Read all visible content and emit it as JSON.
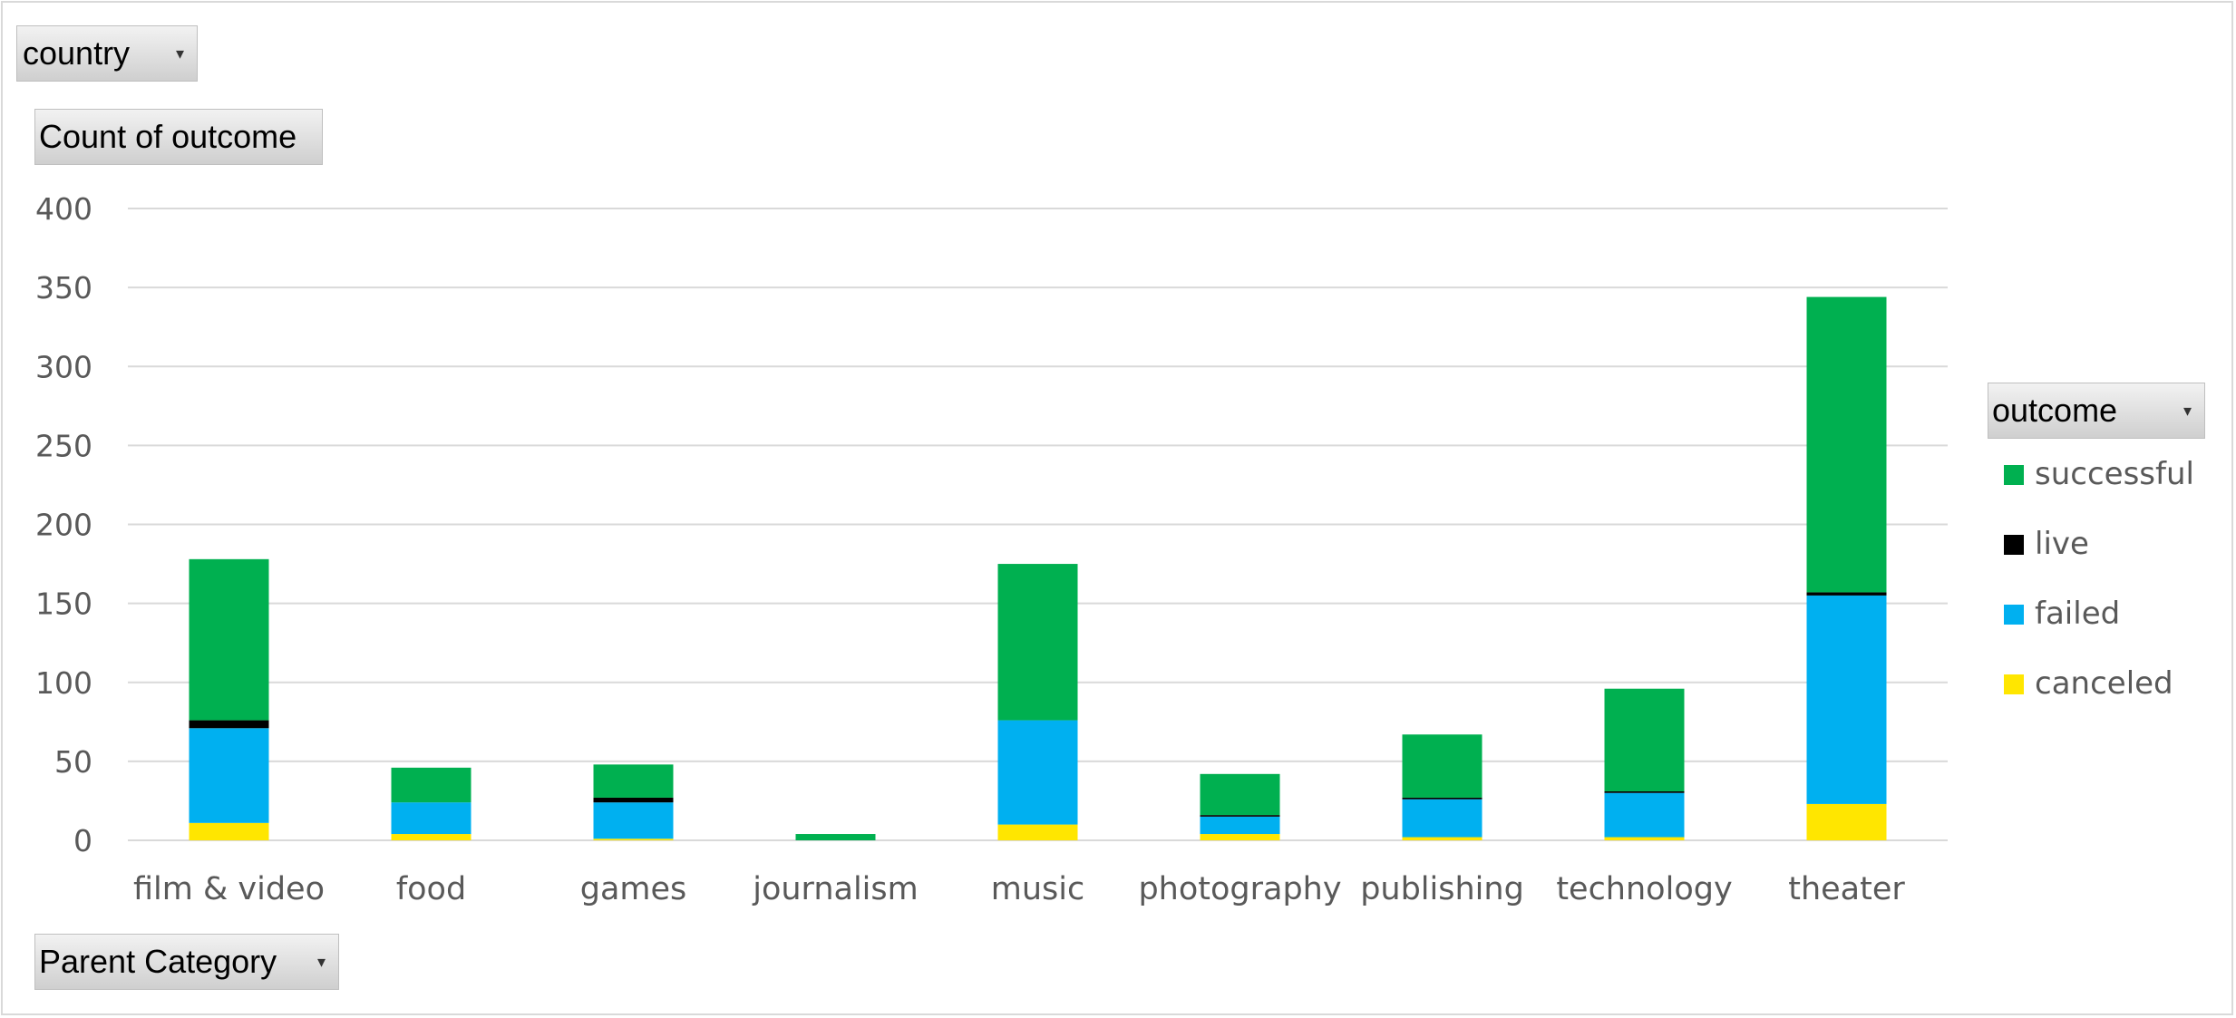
{
  "filters": {
    "report_filter_label": "country",
    "values_label": "Count of outcome",
    "axis_field_label": "Parent Category",
    "legend_field_label": "outcome"
  },
  "colors": {
    "successful": "#00b050",
    "live": "#000000",
    "failed": "#00b0f0",
    "canceled": "#ffe600",
    "gridline": "#d9d9d9"
  },
  "chart_data": {
    "type": "bar",
    "stacked": true,
    "categories": [
      "film & video",
      "food",
      "games",
      "journalism",
      "music",
      "photography",
      "publishing",
      "technology",
      "theater"
    ],
    "series": [
      {
        "name": "canceled",
        "color": "#ffe600",
        "values": [
          11,
          4,
          1,
          0,
          10,
          4,
          2,
          2,
          23
        ]
      },
      {
        "name": "failed",
        "color": "#00b0f0",
        "values": [
          60,
          20,
          23,
          0,
          66,
          11,
          24,
          28,
          132
        ]
      },
      {
        "name": "live",
        "color": "#000000",
        "values": [
          5,
          0,
          3,
          0,
          0,
          1,
          1,
          1,
          2
        ]
      },
      {
        "name": "successful",
        "color": "#00b050",
        "values": [
          102,
          22,
          21,
          4,
          99,
          26,
          40,
          65,
          187
        ]
      }
    ],
    "ylim": [
      0,
      400
    ],
    "yticks": [
      0,
      50,
      100,
      150,
      200,
      250,
      300,
      350,
      400
    ],
    "grid": true,
    "legend_position": "right",
    "legend_order": [
      "successful",
      "live",
      "failed",
      "canceled"
    ],
    "xlabel": "",
    "ylabel": ""
  }
}
